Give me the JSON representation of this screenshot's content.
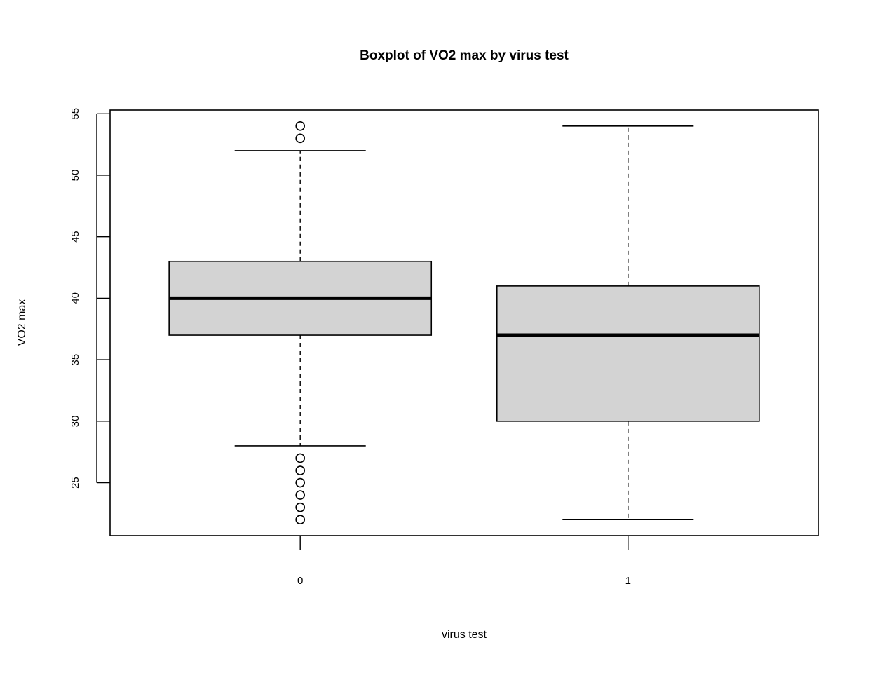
{
  "chart_data": {
    "type": "boxplot",
    "title": "Boxplot of VO2 max by virus test",
    "xlabel": "virus test",
    "ylabel": "VO2 max",
    "categories": [
      "0",
      "1"
    ],
    "y_ticks": [
      25,
      30,
      35,
      40,
      45,
      50,
      55
    ],
    "ylim": [
      20.7,
      55.3
    ],
    "box_fill": "#d3d3d3",
    "line_color": "#000000",
    "grid": false,
    "groups": [
      {
        "category": "0",
        "whisker_low": 28,
        "q1": 37,
        "median": 40,
        "q3": 43,
        "whisker_high": 52,
        "outliers": [
          22,
          23,
          24,
          25,
          26,
          27,
          53,
          54
        ]
      },
      {
        "category": "1",
        "whisker_low": 22,
        "q1": 30,
        "median": 37,
        "q3": 41,
        "whisker_high": 54,
        "outliers": []
      }
    ]
  }
}
